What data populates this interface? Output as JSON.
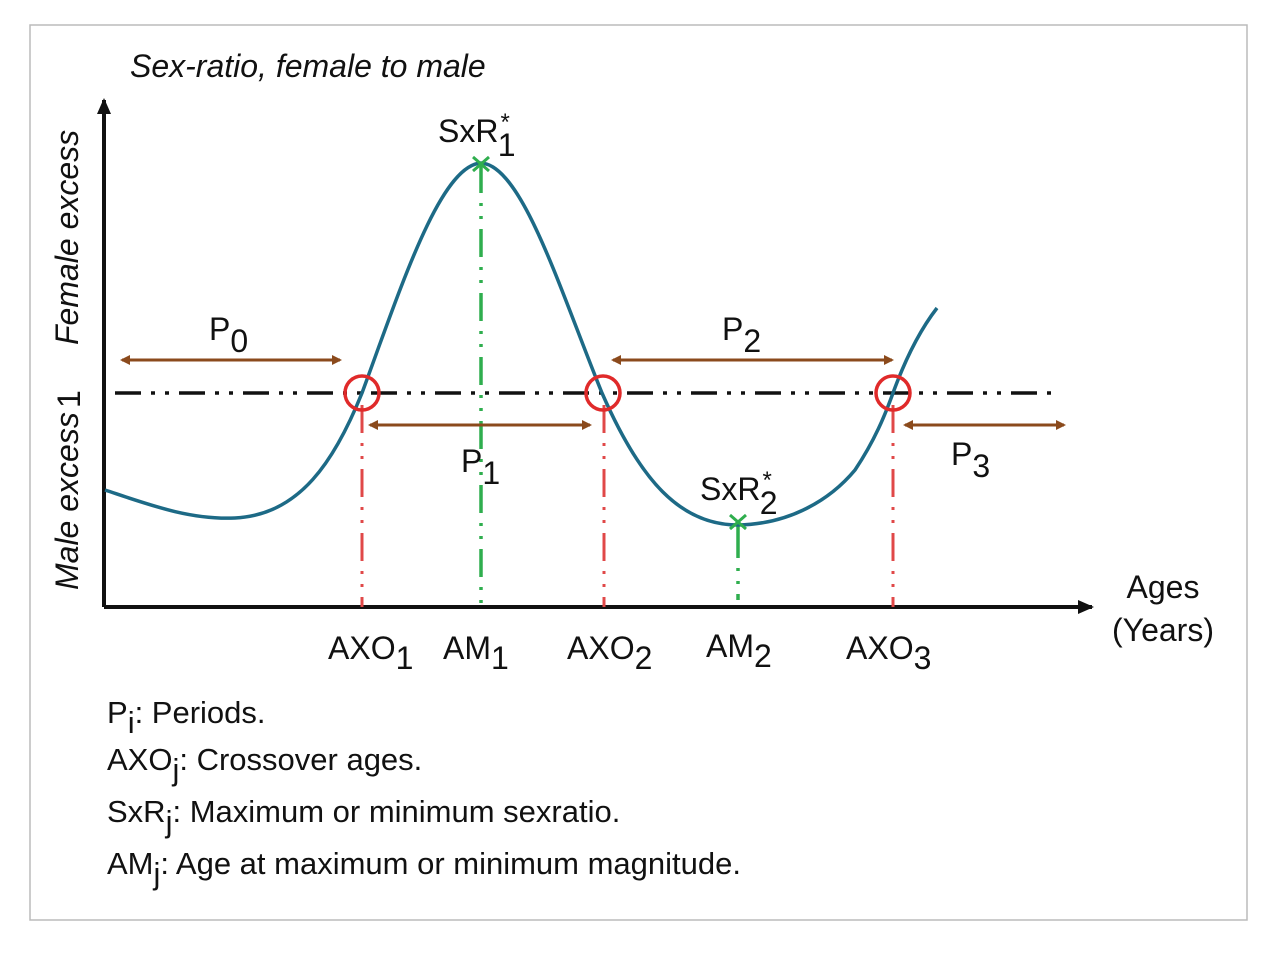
{
  "diagram": {
    "y_title": "Sex-ratio, female to male",
    "y_upper_label": "Female excess",
    "y_lower_label": "Male excess",
    "y_reference_tick": "1",
    "x_title_line1": "Ages",
    "x_title_line2": "(Years)",
    "peak_label": {
      "base": "SxR",
      "sup": "*",
      "sub": "1"
    },
    "trough_label": {
      "base": "SxR",
      "sup": "*",
      "sub": "2"
    },
    "periods": [
      {
        "base": "P",
        "sub": "0"
      },
      {
        "base": "P",
        "sub": "1"
      },
      {
        "base": "P",
        "sub": "2"
      },
      {
        "base": "P",
        "sub": "3"
      }
    ],
    "x_markers": [
      {
        "base": "AXO",
        "sub": "1"
      },
      {
        "base": "AM",
        "sub": "1"
      },
      {
        "base": "AXO",
        "sub": "2"
      },
      {
        "base": "AM",
        "sub": "2"
      },
      {
        "base": "AXO",
        "sub": "3"
      }
    ],
    "legend": [
      {
        "base": "P",
        "sub": "i",
        "text": ": Periods."
      },
      {
        "base": "AXO",
        "sub": "j",
        "text": ": Crossover ages."
      },
      {
        "base": "SxR",
        "sub": "j",
        "text": ": Maximum or minimum sexratio."
      },
      {
        "base": "AM",
        "sub": "j",
        "text": ": Age at maximum or minimum magnitude."
      }
    ],
    "colors": {
      "curve": "#1d6a86",
      "crossover": "#e02a2a",
      "extremum": "#2fae4e",
      "period_arrow": "#8b4a1c",
      "reference_line": "#111111"
    }
  }
}
